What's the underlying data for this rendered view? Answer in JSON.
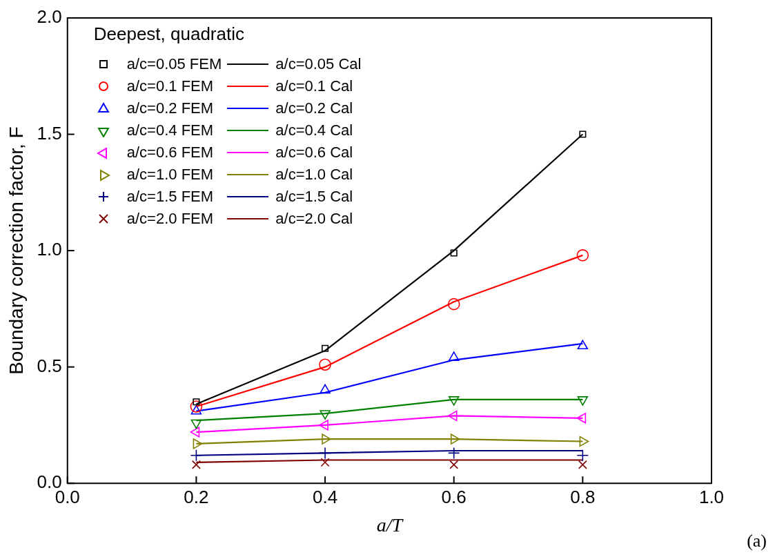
{
  "chart_data": {
    "type": "line",
    "xlabel": "a/T",
    "ylabel": "Boundary correction factor, F",
    "legend_title": "Deepest, quadratic",
    "x": [
      0.2,
      0.4,
      0.6,
      0.8
    ],
    "xlim": [
      0,
      1
    ],
    "xticks": [
      {
        "value": 0,
        "label": "0.0"
      },
      0.2,
      0.4,
      0.6,
      0.8,
      {
        "value": 1,
        "label": "1.0"
      }
    ],
    "ylim": [
      0,
      2
    ],
    "yticks": [
      {
        "value": 0,
        "label": "0.0"
      },
      0.5,
      {
        "value": 1,
        "label": "1.0"
      },
      1.5,
      {
        "value": 2,
        "label": "2.0"
      }
    ],
    "grid": false,
    "legend": "top left",
    "annotations": [
      "(a)"
    ],
    "series": [
      {
        "name": "a/c=0.05 FEM",
        "type": "scatter",
        "marker": "square",
        "color": "#000000",
        "values": [
          0.35,
          0.58,
          0.99,
          1.5
        ]
      },
      {
        "name": "a/c=0.05 Cal",
        "type": "line",
        "color": "#000000",
        "values": [
          0.34,
          0.57,
          1.0,
          1.5
        ]
      },
      {
        "name": "a/c=0.1 FEM",
        "type": "scatter",
        "marker": "circle",
        "color": "#ff0000",
        "values": [
          0.33,
          0.51,
          0.77,
          0.98
        ]
      },
      {
        "name": "a/c=0.1 Cal",
        "type": "line",
        "color": "#ff0000",
        "values": [
          0.33,
          0.5,
          0.78,
          0.98
        ]
      },
      {
        "name": "a/c=0.2 FEM",
        "type": "scatter",
        "marker": "triangle",
        "color": "#0000ff",
        "values": [
          0.31,
          0.4,
          0.54,
          0.59
        ]
      },
      {
        "name": "a/c=0.2 Cal",
        "type": "line",
        "color": "#0000ff",
        "values": [
          0.31,
          0.39,
          0.53,
          0.6
        ]
      },
      {
        "name": "a/c=0.4 FEM",
        "type": "scatter",
        "marker": "triangle-down",
        "color": "#008000",
        "values": [
          0.26,
          0.3,
          0.36,
          0.36
        ]
      },
      {
        "name": "a/c=0.4 Cal",
        "type": "line",
        "color": "#008000",
        "values": [
          0.27,
          0.3,
          0.36,
          0.36
        ]
      },
      {
        "name": "a/c=0.6 FEM",
        "type": "scatter",
        "marker": "triangle-left",
        "color": "#ff00ff",
        "values": [
          0.22,
          0.25,
          0.29,
          0.28
        ]
      },
      {
        "name": "a/c=0.6 Cal",
        "type": "line",
        "color": "#ff00ff",
        "values": [
          0.22,
          0.25,
          0.29,
          0.28
        ]
      },
      {
        "name": "a/c=1.0 FEM",
        "type": "scatter",
        "marker": "triangle-right",
        "color": "#808000",
        "values": [
          0.17,
          0.19,
          0.19,
          0.18
        ]
      },
      {
        "name": "a/c=1.0 Cal",
        "type": "line",
        "color": "#808000",
        "values": [
          0.17,
          0.19,
          0.19,
          0.18
        ]
      },
      {
        "name": "a/c=1.5 FEM",
        "type": "scatter",
        "marker": "plus",
        "color": "#000080",
        "values": [
          0.12,
          0.13,
          0.13,
          0.12
        ]
      },
      {
        "name": "a/c=1.5 Cal",
        "type": "line",
        "color": "#000080",
        "values": [
          0.12,
          0.13,
          0.14,
          0.14
        ]
      },
      {
        "name": "a/c=2.0 FEM",
        "type": "scatter",
        "marker": "x",
        "color": "#800000",
        "values": [
          0.08,
          0.09,
          0.08,
          0.08
        ]
      },
      {
        "name": "a/c=2.0 Cal",
        "type": "line",
        "color": "#800000",
        "values": [
          0.09,
          0.1,
          0.1,
          0.1
        ]
      }
    ]
  }
}
